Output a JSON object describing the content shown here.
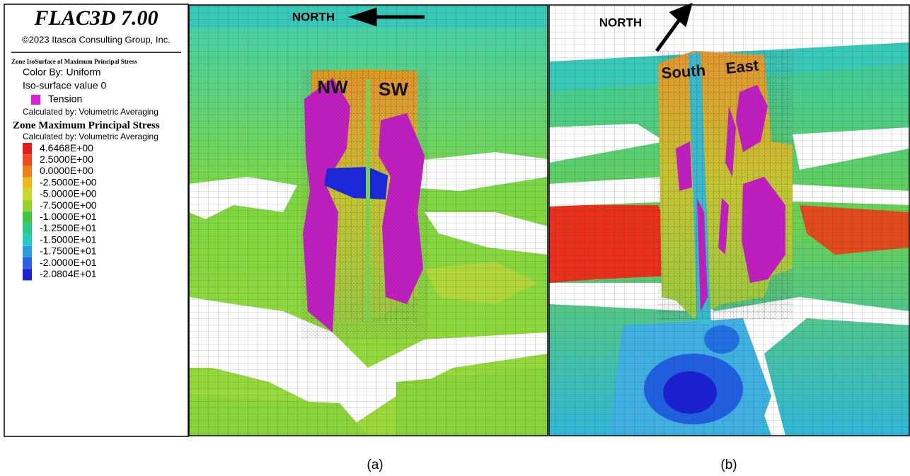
{
  "legend": {
    "title": "FLAC3D 7.00",
    "copyright": "©2023 Itasca Consulting Group, Inc.",
    "isosurface": {
      "heading": "Zone IsoSurface of Maximum Principal Stress",
      "color_by": "Color By: Uniform",
      "iso_value": "Iso-surface value 0",
      "entry": "Tension",
      "calculated_by": "Calculated by: Volumetric Averaging"
    },
    "contour": {
      "heading": "Zone Maximum Principal Stress",
      "calculated_by": "Calculated by: Volumetric Averaging",
      "levels": [
        "4.6468E+00",
        "2.5000E+00",
        "0.0000E+00",
        "-2.5000E+00",
        "-5.0000E+00",
        "-7.5000E+00",
        "-1.0000E+01",
        "-1.2500E+01",
        "-1.5000E+01",
        "-1.7500E+01",
        "-2.0000E+01",
        "-2.0804E+01"
      ]
    }
  },
  "panels": [
    {
      "north": "NORTH",
      "faces": [
        "NW",
        "SW"
      ],
      "caption": "(a)"
    },
    {
      "north": "NORTH",
      "faces": [
        "South",
        "East"
      ],
      "caption": "(b)"
    }
  ]
}
